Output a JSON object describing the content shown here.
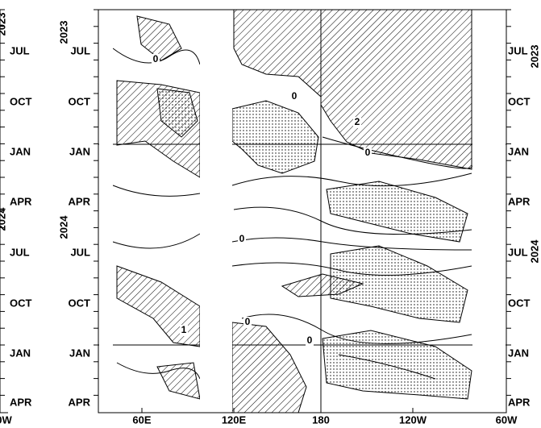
{
  "year_labels": [
    "2023",
    "2024"
  ],
  "month_labels": [
    "JUL",
    "OCT",
    "JAN",
    "APR",
    "JUL",
    "OCT",
    "JAN",
    "APR"
  ],
  "x_labels": [
    "0W",
    "60E",
    "120E",
    "180",
    "120W",
    "60W"
  ],
  "contour_labels": [
    "0",
    "2",
    "0",
    "0",
    "0",
    "0",
    "1",
    "0"
  ]
}
